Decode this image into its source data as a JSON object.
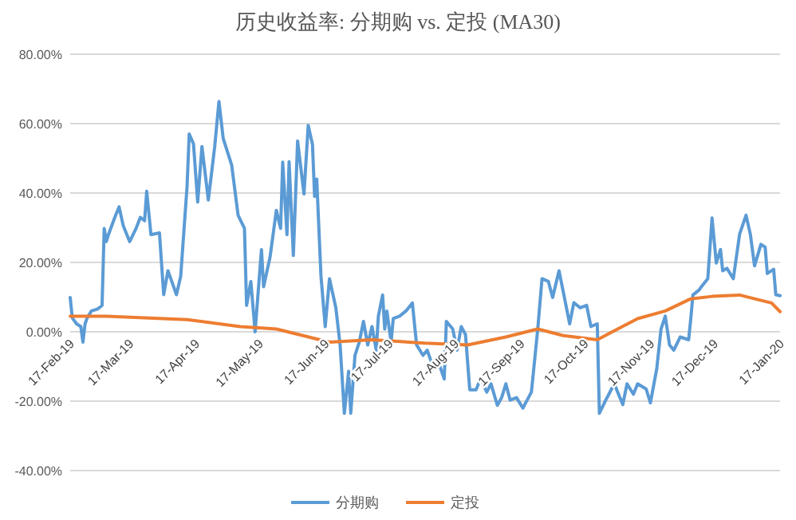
{
  "chart_data": {
    "type": "line",
    "title": "历史收益率: 分期购 vs. 定投 (MA30)",
    "series": [
      {
        "name": "分期购",
        "color": "#5b9bd5",
        "x": [
          "2019-02-17",
          "2019-02-18",
          "2019-02-20",
          "2019-02-22",
          "2019-02-23",
          "2019-02-24",
          "2019-02-25",
          "2019-02-27",
          "2019-03-02",
          "2019-03-04",
          "2019-03-05",
          "2019-03-06",
          "2019-03-07",
          "2019-03-10",
          "2019-03-12",
          "2019-03-14",
          "2019-03-17",
          "2019-03-20",
          "2019-03-22",
          "2019-03-24",
          "2019-03-25",
          "2019-03-27",
          "2019-03-31",
          "2019-04-02",
          "2019-04-04",
          "2019-04-08",
          "2019-04-10",
          "2019-04-13",
          "2019-04-14",
          "2019-04-16",
          "2019-04-18",
          "2019-04-20",
          "2019-04-23",
          "2019-04-26",
          "2019-04-28",
          "2019-04-30",
          "2019-05-04",
          "2019-05-07",
          "2019-05-10",
          "2019-05-11",
          "2019-05-13",
          "2019-05-15",
          "2019-05-18",
          "2019-05-19",
          "2019-05-22",
          "2019-05-25",
          "2019-05-27",
          "2019-05-28",
          "2019-05-30",
          "2019-05-31",
          "2019-06-02",
          "2019-06-04",
          "2019-06-07",
          "2019-06-09",
          "2019-06-11",
          "2019-06-12",
          "2019-06-13",
          "2019-06-15",
          "2019-06-17",
          "2019-06-19",
          "2019-06-22",
          "2019-06-24",
          "2019-06-26",
          "2019-06-28",
          "2019-06-29",
          "2019-07-01",
          "2019-07-03",
          "2019-07-05",
          "2019-07-07",
          "2019-07-09",
          "2019-07-11",
          "2019-07-12",
          "2019-07-14",
          "2019-07-15",
          "2019-07-16",
          "2019-07-18",
          "2019-07-19",
          "2019-07-22",
          "2019-07-25",
          "2019-07-28",
          "2019-07-30",
          "2019-08-02",
          "2019-08-04",
          "2019-08-07",
          "2019-08-09",
          "2019-08-12",
          "2019-08-13",
          "2019-08-16",
          "2019-08-18",
          "2019-08-20",
          "2019-08-22",
          "2019-08-24",
          "2019-08-27",
          "2019-08-29",
          "2019-09-01",
          "2019-09-03",
          "2019-09-06",
          "2019-09-08",
          "2019-09-10",
          "2019-09-12",
          "2019-09-15",
          "2019-09-18",
          "2019-09-22",
          "2019-09-23",
          "2019-09-25",
          "2019-09-27",
          "2019-09-30",
          "2019-10-02",
          "2019-10-05",
          "2019-10-07",
          "2019-10-10",
          "2019-10-12",
          "2019-10-15",
          "2019-10-18",
          "2019-10-20",
          "2019-10-23",
          "2019-10-24",
          "2019-10-27",
          "2019-10-31",
          "2019-11-04",
          "2019-11-06",
          "2019-11-09",
          "2019-11-11",
          "2019-11-15",
          "2019-11-17",
          "2019-11-20",
          "2019-11-22",
          "2019-11-24",
          "2019-11-26",
          "2019-11-28",
          "2019-12-01",
          "2019-12-05",
          "2019-12-06",
          "2019-12-07",
          "2019-12-10",
          "2019-12-11",
          "2019-12-14",
          "2019-12-16",
          "2019-12-18",
          "2019-12-20",
          "2019-12-21",
          "2019-12-23",
          "2019-12-26",
          "2019-12-29",
          "2020-01-01",
          "2020-01-03",
          "2020-01-05",
          "2020-01-08",
          "2020-01-10",
          "2020-01-11",
          "2020-01-13",
          "2020-01-14",
          "2020-01-15",
          "2020-01-17"
        ],
        "values": [
          9.9,
          4,
          2.3,
          1.5,
          -3,
          2.3,
          4,
          6,
          6.6,
          7.6,
          29.8,
          26,
          28,
          33,
          36,
          30.5,
          26,
          29.8,
          33,
          32,
          40.5,
          28,
          28.5,
          10.7,
          17.6,
          10.7,
          16,
          42,
          57,
          54.2,
          37.4,
          53.4,
          38,
          53.4,
          66.4,
          55.7,
          48,
          33.6,
          29.8,
          7.6,
          14.5,
          0,
          23.7,
          13,
          21.4,
          35,
          29.8,
          48.9,
          28,
          49,
          22,
          55,
          39.7,
          59.5,
          54,
          39,
          44,
          16,
          1.5,
          15.3,
          6.9,
          -3.8,
          -23.5,
          -11.4,
          -23.5,
          -6.8,
          -3,
          3,
          -3.8,
          1.5,
          -5.3,
          4.5,
          10.6,
          0.8,
          6,
          -3,
          3.8,
          4.5,
          6,
          8.3,
          -3.8,
          -6.8,
          -5.3,
          -10.6,
          -8.3,
          -13.6,
          3,
          0.8,
          -5.3,
          1.5,
          -0.8,
          -16.7,
          -16.7,
          -13.6,
          -17.4,
          -15,
          -21.2,
          -19,
          -15,
          -19.7,
          -19,
          -22,
          -17.4,
          -11.4,
          0.8,
          15.3,
          14.5,
          9.9,
          17.6,
          11.5,
          2.3,
          8.4,
          6.9,
          7.6,
          1.5,
          2.3,
          -23.5,
          -19.7,
          -15,
          -21,
          -15,
          -18,
          -15,
          -16.5,
          -20.5,
          -10.6,
          0.8,
          4.5,
          -3.8,
          -5.3,
          -1.5,
          -2.3,
          3.8,
          10.6,
          12.1,
          13,
          15.3,
          32.8,
          19.8,
          23.7,
          17.6,
          18.3,
          15.3,
          28.2,
          33.6,
          28.2,
          19,
          25.2,
          24.4,
          16.8,
          17.6,
          18,
          10.7,
          10.4
        ]
      },
      {
        "name": "定投",
        "color": "#ed7d31",
        "x": [
          "2019-02-17",
          "2019-03-06",
          "2019-04-13",
          "2019-05-08",
          "2019-05-25",
          "2019-06-19",
          "2019-07-09",
          "2019-08-03",
          "2019-08-23",
          "2019-09-10",
          "2019-09-25",
          "2019-10-07",
          "2019-10-23",
          "2019-11-11",
          "2019-11-24",
          "2019-12-06",
          "2019-12-16",
          "2019-12-29",
          "2020-01-05",
          "2020-01-13",
          "2020-01-17"
        ],
        "values": [
          4.5,
          4.5,
          3.5,
          1.5,
          0.8,
          -3,
          -2.3,
          -3.3,
          -3.8,
          -1.5,
          0.8,
          -1.1,
          -2.3,
          3.8,
          6,
          9.5,
          10.2,
          10.6,
          9.5,
          8.3,
          5.8
        ]
      }
    ],
    "xlim": [
      "2019-02-17",
      "2020-01-17"
    ],
    "xticks": [
      {
        "value": "2019-02-17",
        "label": "17-Feb-19"
      },
      {
        "value": "2019-03-17",
        "label": "17-Mar-19"
      },
      {
        "value": "2019-04-17",
        "label": "17-Apr-19"
      },
      {
        "value": "2019-05-17",
        "label": "17-May-19"
      },
      {
        "value": "2019-06-17",
        "label": "17-Jun-19"
      },
      {
        "value": "2019-07-17",
        "label": "17-Jul-19"
      },
      {
        "value": "2019-08-17",
        "label": "17-Aug-19"
      },
      {
        "value": "2019-09-17",
        "label": "17-Sep-19"
      },
      {
        "value": "2019-10-17",
        "label": "17-Oct-19"
      },
      {
        "value": "2019-11-17",
        "label": "17-Nov-19"
      },
      {
        "value": "2019-12-17",
        "label": "17-Dec-19"
      },
      {
        "value": "2020-01-17",
        "label": "17-Jan-20"
      }
    ],
    "ylim": [
      -40,
      80
    ],
    "yticks": [
      {
        "value": -40,
        "label": "-40.00%"
      },
      {
        "value": -20,
        "label": "-20.00%"
      },
      {
        "value": 0,
        "label": "0.00%"
      },
      {
        "value": 20,
        "label": "20.00%"
      },
      {
        "value": 40,
        "label": "40.00%"
      },
      {
        "value": 60,
        "label": "60.00%"
      },
      {
        "value": 80,
        "label": "80.00%"
      }
    ],
    "grid": "y",
    "legend": "bottom",
    "line_style": "solid",
    "marker": "none"
  }
}
